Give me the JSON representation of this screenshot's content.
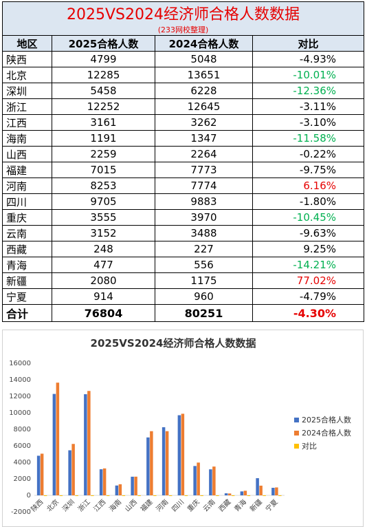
{
  "table": {
    "title": "2025VS2024经济师合格人数数据",
    "subtitle": "(233网校整理)",
    "headers": [
      "地区",
      "2025合格人数",
      "2024合格人数",
      "对比"
    ],
    "rows": [
      {
        "region": "陕西",
        "y2025": "4799",
        "y2024": "5048",
        "diff": "-4.93%",
        "color": "black"
      },
      {
        "region": "北京",
        "y2025": "12285",
        "y2024": "13651",
        "diff": "-10.01%",
        "color": "green"
      },
      {
        "region": "深圳",
        "y2025": "5458",
        "y2024": "6228",
        "diff": "-12.36%",
        "color": "green"
      },
      {
        "region": "浙江",
        "y2025": "12252",
        "y2024": "12645",
        "diff": "-3.11%",
        "color": "black"
      },
      {
        "region": "江西",
        "y2025": "3161",
        "y2024": "3262",
        "diff": "-3.10%",
        "color": "black"
      },
      {
        "region": "海南",
        "y2025": "1191",
        "y2024": "1347",
        "diff": "-11.58%",
        "color": "green"
      },
      {
        "region": "山西",
        "y2025": "2259",
        "y2024": "2264",
        "diff": "-0.22%",
        "color": "black"
      },
      {
        "region": "福建",
        "y2025": "7015",
        "y2024": "7773",
        "diff": "-9.75%",
        "color": "black"
      },
      {
        "region": "河南",
        "y2025": "8253",
        "y2024": "7774",
        "diff": "6.16%",
        "color": "red"
      },
      {
        "region": "四川",
        "y2025": "9705",
        "y2024": "9883",
        "diff": "-1.80%",
        "color": "black"
      },
      {
        "region": "重庆",
        "y2025": "3555",
        "y2024": "3970",
        "diff": "-10.45%",
        "color": "green"
      },
      {
        "region": "云南",
        "y2025": "3152",
        "y2024": "3488",
        "diff": "-9.63%",
        "color": "black"
      },
      {
        "region": "西藏",
        "y2025": "248",
        "y2024": "227",
        "diff": "9.25%",
        "color": "black"
      },
      {
        "region": "青海",
        "y2025": "477",
        "y2024": "556",
        "diff": "-14.21%",
        "color": "green"
      },
      {
        "region": "新疆",
        "y2025": "2080",
        "y2024": "1175",
        "diff": "77.02%",
        "color": "red"
      },
      {
        "region": "宁夏",
        "y2025": "914",
        "y2024": "960",
        "diff": "-4.79%",
        "color": "black"
      }
    ],
    "total": {
      "region": "合计",
      "y2025": "76804",
      "y2024": "80251",
      "diff": "-4.30%",
      "color": "red"
    }
  },
  "chart_data": {
    "type": "bar",
    "title": "2025VS2024经济师合格人数数据",
    "categories": [
      "陕西",
      "北京",
      "深圳",
      "浙江",
      "江西",
      "海南",
      "山西",
      "福建",
      "河南",
      "四川",
      "重庆",
      "云南",
      "西藏",
      "青海",
      "新疆",
      "宁夏"
    ],
    "series": [
      {
        "name": "2025合格人数",
        "color": "#4472c4",
        "values": [
          4799,
          12285,
          5458,
          12252,
          3161,
          1191,
          2259,
          7015,
          8253,
          9705,
          3555,
          3152,
          248,
          477,
          2080,
          914
        ]
      },
      {
        "name": "2024合格人数",
        "color": "#ed7d31",
        "values": [
          5048,
          13651,
          6228,
          12645,
          3262,
          1347,
          2264,
          7773,
          7774,
          9883,
          3970,
          3488,
          227,
          556,
          1175,
          960
        ]
      },
      {
        "name": "对比",
        "color": "#ffc000",
        "values": [
          -0.0493,
          -0.1001,
          -0.1236,
          -0.0311,
          -0.031,
          -0.1158,
          -0.0022,
          -0.0975,
          0.0616,
          -0.018,
          -0.1045,
          -0.0963,
          0.0925,
          -0.1421,
          0.7702,
          -0.0479
        ]
      }
    ],
    "yticks": [
      "-2000",
      "0",
      "2000",
      "4000",
      "6000",
      "8000",
      "10000",
      "12000",
      "14000",
      "16000"
    ],
    "ylim": [
      -2000,
      16000
    ],
    "legend_position": "right",
    "grid": false
  }
}
